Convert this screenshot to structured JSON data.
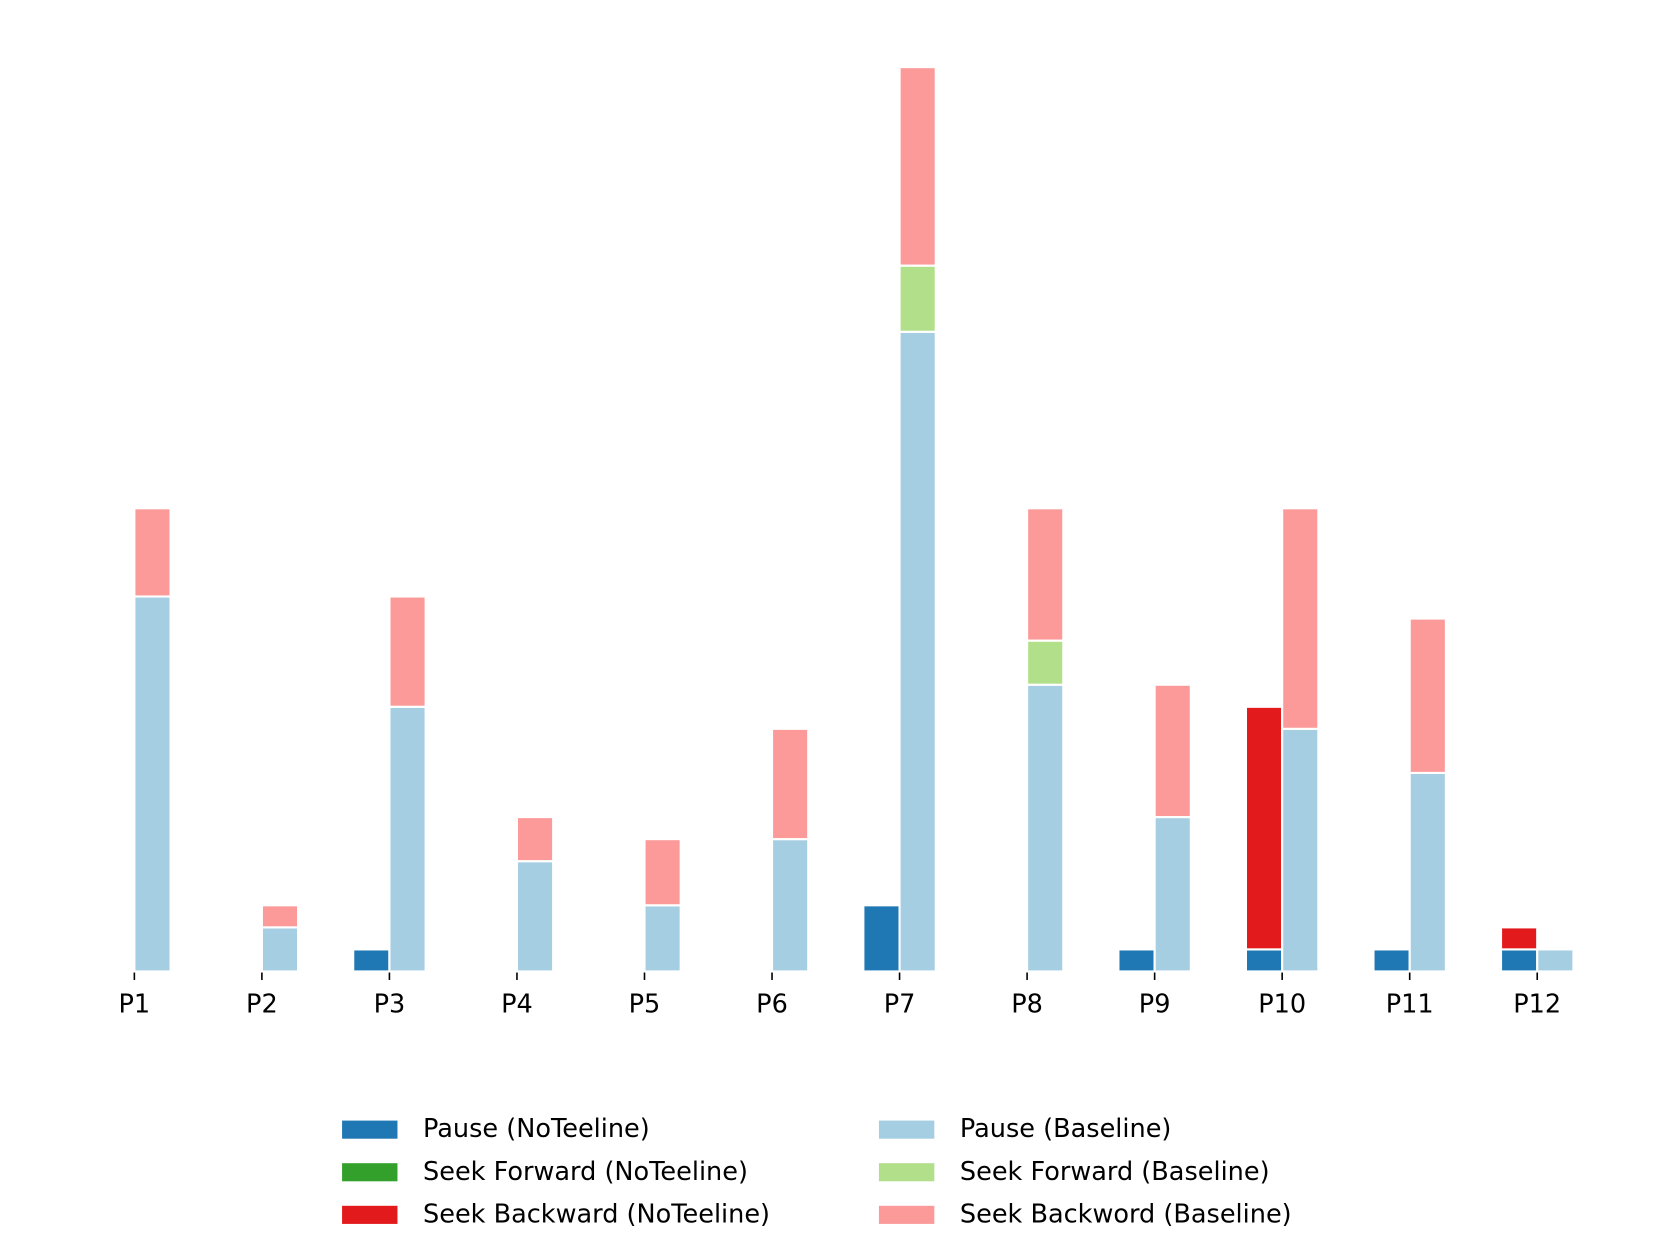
{
  "chart_data": {
    "type": "grouped-stacked-bar",
    "categories": [
      "P1",
      "P2",
      "P3",
      "P4",
      "P5",
      "P6",
      "P7",
      "P8",
      "P9",
      "P10",
      "P11",
      "P12"
    ],
    "series": [
      {
        "name": "Pause (NoTeeline)",
        "color": "#1f78b4",
        "stack": 0,
        "values": [
          0,
          0,
          1,
          0,
          0,
          0,
          3,
          0,
          1,
          1,
          1,
          1
        ]
      },
      {
        "name": "Seek Forward (NoTeeline)",
        "color": "#33a02c",
        "stack": 0,
        "values": [
          0,
          0,
          0,
          0,
          0,
          0,
          0,
          0,
          0,
          0,
          0,
          0
        ]
      },
      {
        "name": "Seek Backward (NoTeeline)",
        "color": "#e31a1c",
        "stack": 0,
        "values": [
          0,
          0,
          0,
          0,
          0,
          0,
          0,
          0,
          0,
          11,
          0,
          1
        ]
      },
      {
        "name": "Pause (Baseline)",
        "color": "#a6cee3",
        "stack": 1,
        "values": [
          17,
          2,
          12,
          5,
          3,
          6,
          29,
          13,
          7,
          11,
          9,
          1
        ]
      },
      {
        "name": "Seek Forward (Baseline)",
        "color": "#b2df8a",
        "stack": 1,
        "values": [
          0,
          0,
          0,
          0,
          0,
          0,
          3,
          2,
          0,
          0,
          0,
          0
        ]
      },
      {
        "name": "Seek Backword (Baseline)",
        "color": "#fb9a99",
        "stack": 1,
        "values": [
          4,
          1,
          5,
          2,
          3,
          5,
          9,
          6,
          6,
          10,
          7,
          0
        ]
      }
    ],
    "ylim": [
      0,
      41
    ],
    "legend_columns": 2
  }
}
